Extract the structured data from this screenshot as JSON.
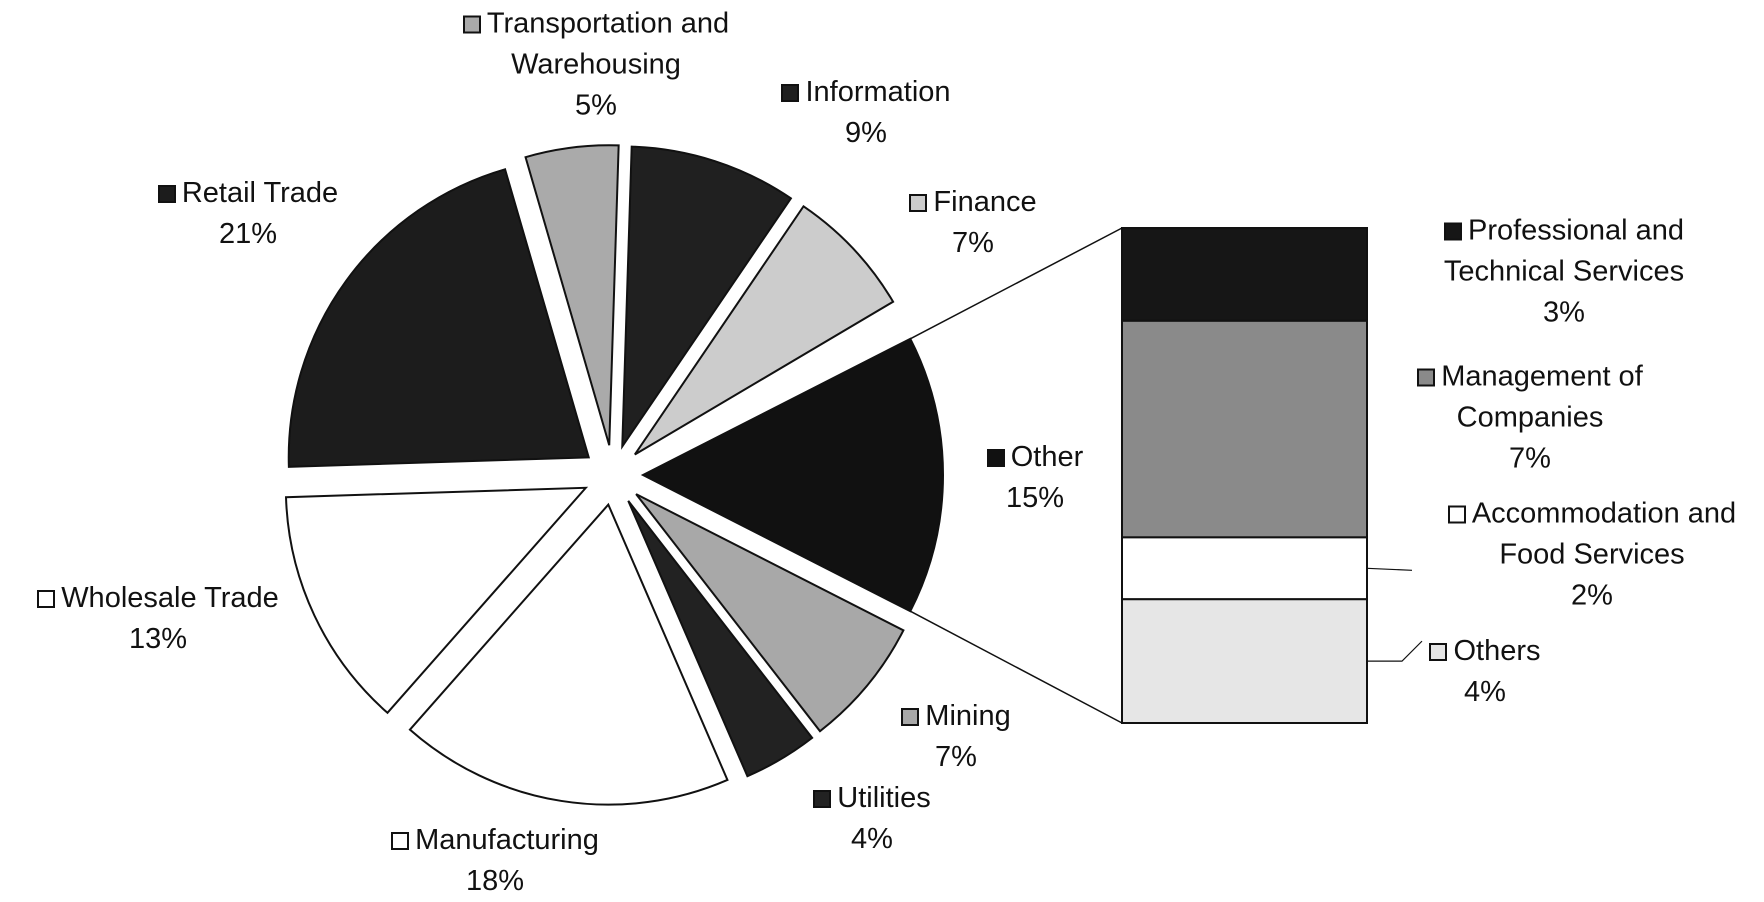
{
  "chart_data": {
    "type": "pie",
    "categories": [
      "Other",
      "Mining",
      "Utilities",
      "Manufacturing",
      "Wholesale Trade",
      "Retail Trade",
      "Transportation and Warehousing",
      "Information",
      "Finance"
    ],
    "values": [
      15,
      7,
      4,
      18,
      13,
      21,
      5,
      9,
      7
    ],
    "value_labels": [
      "15%",
      "7%",
      "4%",
      "18%",
      "13%",
      "21%",
      "5%",
      "9%",
      "7%"
    ],
    "colors": [
      "#111111",
      "#a8a8a8",
      "#222222",
      "#ffffff",
      "#ffffff",
      "#1c1c1c",
      "#aaaaaa",
      "#202020",
      "#cccccc"
    ],
    "breakdown": {
      "categories": [
        "Professional and Technical Services",
        "Management of Companies",
        "Accommodation and Food Services",
        "Others"
      ],
      "values": [
        3,
        7,
        2,
        4
      ],
      "value_labels": [
        "3%",
        "7%",
        "2%",
        "4%"
      ],
      "colors": [
        "#161616",
        "#8a8a8a",
        "#ffffff",
        "#e6e6e6"
      ]
    }
  }
}
